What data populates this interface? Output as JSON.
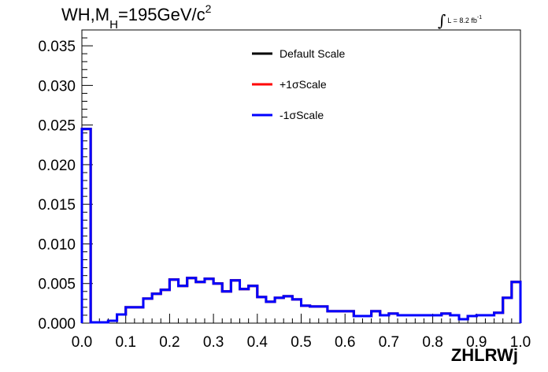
{
  "title": {
    "prefix": "WH,M",
    "sub": "H",
    "mid": "=195GeV/c",
    "sup": "2"
  },
  "luminosity": {
    "integral": "∫",
    "text": "L = 8.2 fb",
    "sup": "-1"
  },
  "chart_data": {
    "type": "line",
    "histogram": true,
    "xlabel": "ZHLRWj",
    "ylabel": "",
    "xlim": [
      0.0,
      1.0
    ],
    "ylim": [
      0.0,
      0.037
    ],
    "xticks": [
      "0.0",
      "0.1",
      "0.2",
      "0.3",
      "0.4",
      "0.5",
      "0.6",
      "0.7",
      "0.8",
      "0.9",
      "1.0"
    ],
    "yticks": [
      "0.000",
      "0.005",
      "0.010",
      "0.015",
      "0.020",
      "0.025",
      "0.030",
      "0.035"
    ],
    "grid": false,
    "legend_position": "top-center",
    "bin_edges": [
      0.0,
      0.02,
      0.04,
      0.06,
      0.08,
      0.1,
      0.12,
      0.14,
      0.16,
      0.18,
      0.2,
      0.22,
      0.24,
      0.26,
      0.28,
      0.3,
      0.32,
      0.34,
      0.36,
      0.38,
      0.4,
      0.42,
      0.44,
      0.46,
      0.48,
      0.5,
      0.52,
      0.54,
      0.56,
      0.58,
      0.6,
      0.62,
      0.64,
      0.66,
      0.68,
      0.7,
      0.72,
      0.74,
      0.76,
      0.78,
      0.8,
      0.82,
      0.84,
      0.86,
      0.88,
      0.9,
      0.92,
      0.94,
      0.96,
      0.98,
      1.0
    ],
    "series": [
      {
        "name": "Default Scale",
        "color": "#000000",
        "values": [
          0.0245,
          0.0001,
          0.0001,
          0.0003,
          0.0011,
          0.002,
          0.002,
          0.0031,
          0.0037,
          0.0042,
          0.0055,
          0.0047,
          0.0057,
          0.0052,
          0.0056,
          0.005,
          0.004,
          0.0054,
          0.0043,
          0.0047,
          0.0033,
          0.0027,
          0.0032,
          0.0034,
          0.003,
          0.0022,
          0.0021,
          0.0021,
          0.0015,
          0.0015,
          0.0015,
          0.0009,
          0.0009,
          0.0015,
          0.001,
          0.0012,
          0.001,
          0.001,
          0.001,
          0.001,
          0.001,
          0.0012,
          0.001,
          0.0005,
          0.0009,
          0.001,
          0.001,
          0.0013,
          0.0032,
          0.0052
        ]
      },
      {
        "name": "+1σScale",
        "color": "#ff0000",
        "values": [
          0.0245,
          0.0001,
          0.0001,
          0.0003,
          0.0011,
          0.002,
          0.002,
          0.0031,
          0.0037,
          0.0042,
          0.0055,
          0.0047,
          0.0057,
          0.0052,
          0.0056,
          0.005,
          0.004,
          0.0054,
          0.0043,
          0.0047,
          0.0033,
          0.0027,
          0.0032,
          0.0034,
          0.003,
          0.0022,
          0.0021,
          0.0021,
          0.0015,
          0.0015,
          0.0015,
          0.0009,
          0.0009,
          0.0015,
          0.001,
          0.0012,
          0.001,
          0.001,
          0.001,
          0.001,
          0.001,
          0.0012,
          0.001,
          0.0005,
          0.0009,
          0.001,
          0.001,
          0.0013,
          0.0032,
          0.0052
        ]
      },
      {
        "name": "-1σScale",
        "color": "#0000ff",
        "values": [
          0.0245,
          0.0001,
          0.0001,
          0.0003,
          0.0011,
          0.002,
          0.002,
          0.0031,
          0.0037,
          0.0042,
          0.0055,
          0.0047,
          0.0057,
          0.0052,
          0.0056,
          0.005,
          0.004,
          0.0054,
          0.0043,
          0.0047,
          0.0033,
          0.0027,
          0.0032,
          0.0034,
          0.003,
          0.0022,
          0.0021,
          0.0021,
          0.0015,
          0.0015,
          0.0015,
          0.0009,
          0.0009,
          0.0015,
          0.001,
          0.0012,
          0.001,
          0.001,
          0.001,
          0.001,
          0.001,
          0.0012,
          0.001,
          0.0005,
          0.0009,
          0.001,
          0.001,
          0.0013,
          0.0032,
          0.0052
        ]
      }
    ]
  }
}
